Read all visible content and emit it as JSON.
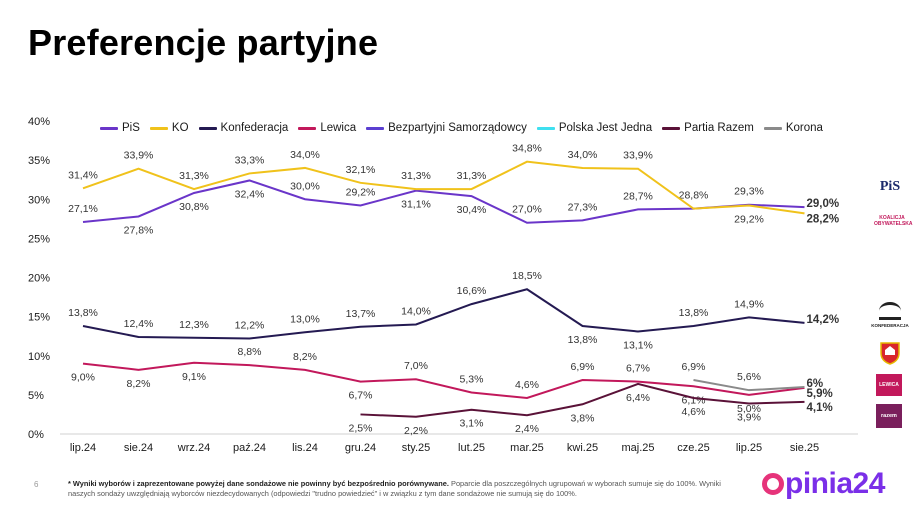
{
  "page": {
    "title": "Preferencje partyjne",
    "page_number": "6",
    "footnote_bold": "* Wyniki wyborów i zaprezentowane powyżej dane sondażowe nie powinny być bezpośrednio porównywane.",
    "footnote_rest": " Poparcie dla poszczególnych ugrupowań w wyborach sumuje się do 100%. Wyniki naszych sondaży uwzględniają wyborców niezdecydowanych (odpowiedzi \"trudno powiedzieć\" i w związku z tym dane sondażowe nie sumują się do 100%.",
    "brand": "opinia24",
    "brand_o": "o",
    "brand_rest": "pinia24"
  },
  "party_logos": {
    "pis": "PiS",
    "ko": "KOALICJA OBYWATELSKA",
    "konfederacja": "KONFEDERACJA",
    "lewica": "LEWICA",
    "razem": "razem"
  },
  "chart_data": {
    "type": "line",
    "title": "",
    "xlabel": "",
    "ylabel": "",
    "ylim": [
      0,
      40
    ],
    "yticks": [
      "0%",
      "5%",
      "10%",
      "15%",
      "20%",
      "25%",
      "30%",
      "35%",
      "40%"
    ],
    "categories": [
      "lip.24",
      "sie.24",
      "wrz.24",
      "paź.24",
      "lis.24",
      "gru.24",
      "sty.25",
      "lut.25",
      "mar.25",
      "kwi.25",
      "maj.25",
      "cze.25",
      "lip.25",
      "sie.25"
    ],
    "series": [
      {
        "name": "PiS",
        "color": "#6a35c9",
        "values": [
          27.1,
          27.8,
          30.8,
          32.4,
          30.0,
          29.2,
          31.1,
          30.4,
          27.0,
          27.3,
          28.7,
          28.8,
          29.3,
          29.0
        ],
        "labels": [
          "27,1%",
          "27,8%",
          "30,8%",
          "32,4%",
          "30,0%",
          "29,2%",
          "31,1%",
          "30,4%",
          "27,0%",
          "27,3%",
          "28,7%",
          "28,8%",
          "29,3%",
          "29,0%"
        ]
      },
      {
        "name": "KO",
        "color": "#f0c21b",
        "values": [
          31.4,
          33.9,
          31.3,
          33.3,
          34.0,
          32.1,
          31.3,
          31.3,
          34.8,
          34.0,
          33.9,
          28.8,
          29.2,
          28.2
        ],
        "labels": [
          "31,4%",
          "33,9%",
          "31,3%",
          "33,3%",
          "34,0%",
          "32,1%",
          "31,3%",
          "31,3%",
          "34,8%",
          "34,0%",
          "33,9%",
          "",
          "29,2%",
          "28,2%"
        ]
      },
      {
        "name": "Konfederacja",
        "color": "#241a52",
        "values": [
          13.8,
          12.4,
          12.3,
          12.2,
          13.0,
          13.7,
          14.0,
          16.6,
          18.5,
          13.8,
          13.1,
          13.8,
          14.9,
          14.2
        ],
        "labels": [
          "13,8%",
          "12,4%",
          "12,3%",
          "12,2%",
          "13,0%",
          "13,7%",
          "14,0%",
          "16,6%",
          "18,5%",
          "13,8%",
          "13,1%",
          "13,8%",
          "14,9%",
          "14,2%"
        ]
      },
      {
        "name": "Lewica",
        "color": "#c2185b",
        "values": [
          9.0,
          8.2,
          9.1,
          8.8,
          8.2,
          6.7,
          7.0,
          5.3,
          4.6,
          6.9,
          6.7,
          6.1,
          5.0,
          5.9
        ],
        "labels": [
          "9,0%",
          "8,2%",
          "9,1%",
          "8,8%",
          "8,2%",
          "6,7%",
          "7,0%",
          "5,3%",
          "4,6%",
          "6,9%",
          "6,7%",
          "6,1%",
          "5,0%",
          "5,9%"
        ]
      },
      {
        "name": "Bezpartyjni Samorządowcy",
        "color": "#5b3fd1",
        "values": [
          null,
          null,
          null,
          null,
          null,
          null,
          null,
          null,
          null,
          null,
          null,
          null,
          null,
          null
        ],
        "labels": []
      },
      {
        "name": "Polska Jest Jedna",
        "color": "#3fe0f0",
        "values": [
          null,
          null,
          null,
          null,
          null,
          null,
          null,
          null,
          null,
          null,
          null,
          null,
          null,
          null
        ],
        "labels": []
      },
      {
        "name": "Partia Razem",
        "color": "#5a1238",
        "values": [
          null,
          null,
          null,
          null,
          null,
          2.5,
          2.2,
          3.1,
          2.4,
          3.8,
          6.4,
          4.6,
          3.9,
          4.1
        ],
        "labels": [
          "",
          "",
          "",
          "",
          "",
          "2,5%",
          "2,2%",
          "3,1%",
          "2,4%",
          "3,8%",
          "6,4%",
          "4,6%",
          "3,9%",
          "4,1%"
        ]
      },
      {
        "name": "Korona",
        "color": "#8a8a8a",
        "values": [
          null,
          null,
          null,
          null,
          null,
          null,
          null,
          null,
          null,
          null,
          null,
          6.9,
          5.6,
          6.0
        ],
        "labels": [
          "",
          "",
          "",
          "",
          "",
          "",
          "",
          "",
          "",
          "",
          "",
          "6,9%",
          "5,6%",
          "6%"
        ]
      }
    ]
  }
}
